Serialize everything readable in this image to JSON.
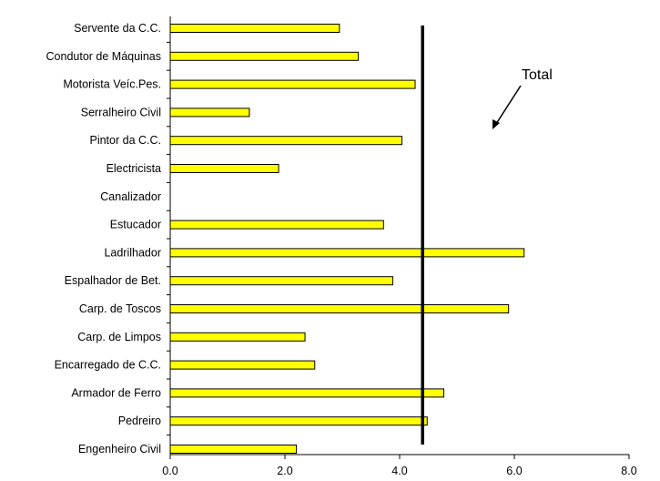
{
  "chart_data": {
    "type": "bar",
    "orientation": "horizontal",
    "categories": [
      "Servente da C.C.",
      "Condutor de Máquinas",
      "Motorista Veíc.Pes.",
      "Serralheiro Civil",
      "Pintor da C.C.",
      "Electricista",
      "Canalizador",
      "Estucador",
      "Ladrilhador",
      "Espalhador de Bet.",
      "Carp. de Toscos",
      "Carp. de Limpos",
      "Encarregado de C.C.",
      "Armador de Ferro",
      "Pedreiro",
      "Engenheiro Civil"
    ],
    "values": [
      2.95,
      3.28,
      4.27,
      1.38,
      4.04,
      1.89,
      0,
      3.72,
      6.17,
      3.88,
      5.9,
      2.35,
      2.52,
      4.77,
      4.48,
      2.2
    ],
    "bar_color": "#ffff00",
    "reference_line": {
      "value": 4.4,
      "label": "Total"
    },
    "xlim": [
      0,
      8
    ],
    "xticks": [
      "0.0",
      "2.0",
      "4.0",
      "6.0",
      "8.0"
    ],
    "title": "",
    "xlabel": "",
    "ylabel": "",
    "grid": false,
    "legend": "none"
  }
}
